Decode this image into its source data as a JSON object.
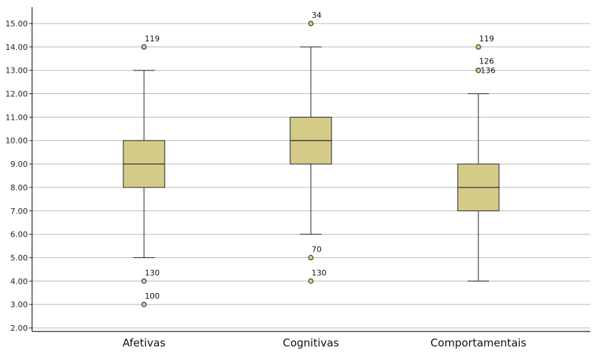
{
  "chart_data": {
    "type": "boxplot",
    "title": "",
    "xlabel": "",
    "ylabel": "",
    "ylim": [
      2,
      15.8
    ],
    "yticks": [
      "2.00",
      "3.00",
      "4.00",
      "5.00",
      "6.00",
      "7.00",
      "8.00",
      "9.00",
      "10.00",
      "11.00",
      "12.00",
      "13.00",
      "14.00",
      "15.00"
    ],
    "grid": true,
    "colors": {
      "box_fill": "#d4cb88",
      "stroke": "#222222",
      "grid": "#b8b8b8",
      "outlier_fill": "#d4cb88"
    },
    "boxes": [
      {
        "category": "Afetivas",
        "whisker_low": 5,
        "q1": 8,
        "median": 9,
        "q3": 10,
        "whisker_high": 13,
        "outliers": [
          {
            "value": 14,
            "label": "119"
          },
          {
            "value": 4,
            "label": "130"
          },
          {
            "value": 3,
            "label": "100"
          }
        ]
      },
      {
        "category": "Cognitivas",
        "whisker_low": 6,
        "q1": 9,
        "median": 10,
        "q3": 11,
        "whisker_high": 14,
        "outliers": [
          {
            "value": 15,
            "label": "34"
          },
          {
            "value": 5,
            "label": "70"
          },
          {
            "value": 4,
            "label": "130"
          }
        ]
      },
      {
        "category": "Comportamentais",
        "whisker_low": 4,
        "q1": 7,
        "median": 8,
        "q3": 9,
        "whisker_high": 12,
        "outliers": [
          {
            "value": 14,
            "label": "119"
          },
          {
            "value": 13,
            "label": "126"
          },
          {
            "value": 13,
            "label": "136"
          }
        ]
      }
    ]
  }
}
